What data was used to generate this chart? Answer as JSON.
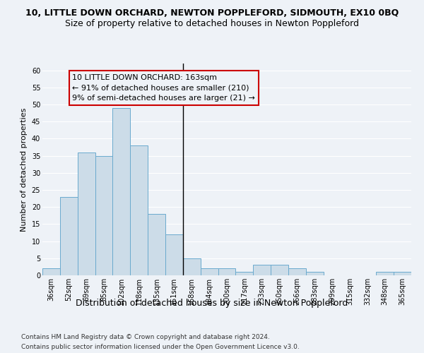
{
  "title": "10, LITTLE DOWN ORCHARD, NEWTON POPPLEFORD, SIDMOUTH, EX10 0BQ",
  "subtitle": "Size of property relative to detached houses in Newton Poppleford",
  "xlabel": "Distribution of detached houses by size in Newton Poppleford",
  "ylabel": "Number of detached properties",
  "categories": [
    "36sqm",
    "52sqm",
    "69sqm",
    "85sqm",
    "102sqm",
    "118sqm",
    "135sqm",
    "151sqm",
    "168sqm",
    "184sqm",
    "200sqm",
    "217sqm",
    "233sqm",
    "250sqm",
    "266sqm",
    "283sqm",
    "299sqm",
    "315sqm",
    "332sqm",
    "348sqm",
    "365sqm"
  ],
  "values": [
    2,
    23,
    36,
    35,
    49,
    38,
    18,
    12,
    5,
    2,
    2,
    1,
    3,
    3,
    2,
    1,
    0,
    0,
    0,
    1,
    1
  ],
  "bar_color": "#ccdce8",
  "bar_edge_color": "#6aaace",
  "vline_color": "black",
  "annotation_text": "10 LITTLE DOWN ORCHARD: 163sqm\n← 91% of detached houses are smaller (210)\n9% of semi-detached houses are larger (21) →",
  "annotation_box_color": "#cc0000",
  "ylim": [
    0,
    62
  ],
  "yticks": [
    0,
    5,
    10,
    15,
    20,
    25,
    30,
    35,
    40,
    45,
    50,
    55,
    60
  ],
  "background_color": "#eef2f7",
  "grid_color": "#ffffff",
  "footnote1": "Contains HM Land Registry data © Crown copyright and database right 2024.",
  "footnote2": "Contains public sector information licensed under the Open Government Licence v3.0.",
  "title_fontsize": 9,
  "subtitle_fontsize": 9,
  "xlabel_fontsize": 9,
  "ylabel_fontsize": 8,
  "tick_fontsize": 7,
  "annotation_fontsize": 8,
  "footnote_fontsize": 6.5
}
